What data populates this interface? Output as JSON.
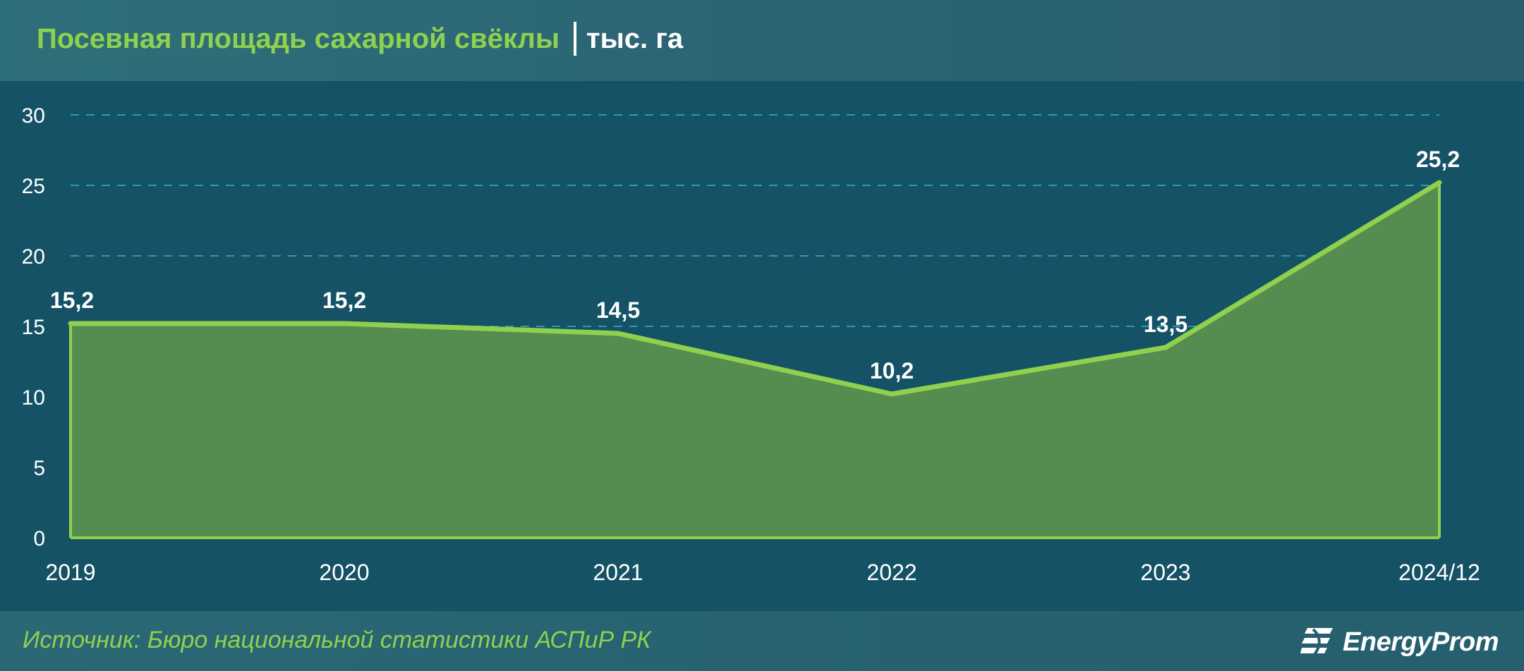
{
  "header": {
    "title": "Посевная площадь сахарной свёклы",
    "unit": "тыс. га"
  },
  "footer": {
    "source": "Источник: Бюро национальной статистики АСПиР РК",
    "logo": "EnergyProm"
  },
  "colors": {
    "background": "#155266",
    "accent": "#8fd14f",
    "area_fill": "#558c50",
    "line": "#8fd14f",
    "grid": "#2a9bb0",
    "text": "#ffffff"
  },
  "chart_data": {
    "type": "area",
    "categories": [
      "2019",
      "2020",
      "2021",
      "2022",
      "2023",
      "2024/12"
    ],
    "values": [
      15.2,
      15.2,
      14.5,
      10.2,
      13.5,
      25.2
    ],
    "data_labels": [
      "15,2",
      "15,2",
      "14,5",
      "10,2",
      "13,5",
      "25,2"
    ],
    "y_ticks": [
      0,
      5,
      10,
      15,
      20,
      25,
      30
    ],
    "ylim": [
      0,
      30
    ],
    "grid": true,
    "legend": "none"
  }
}
